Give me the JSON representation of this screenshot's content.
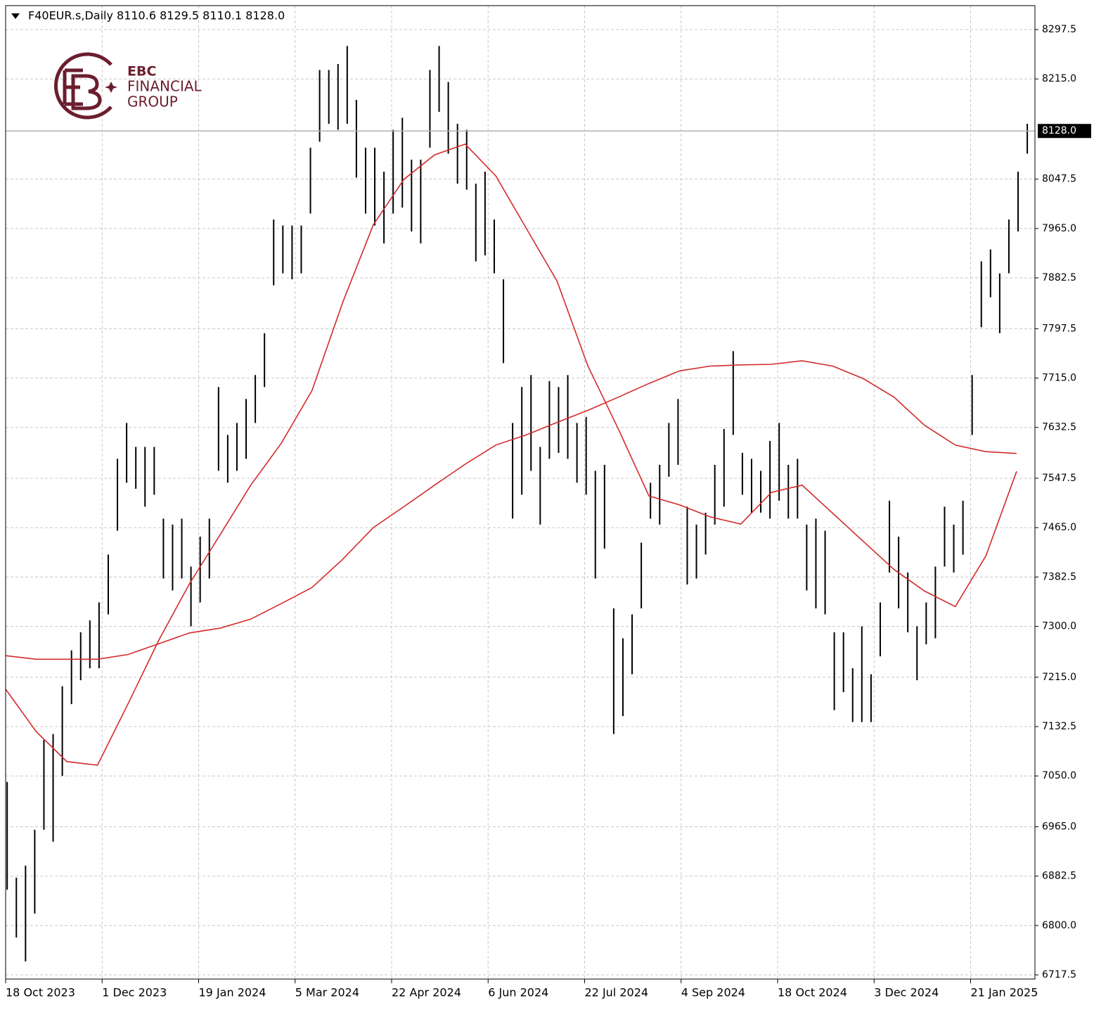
{
  "chart_data": {
    "type": "ohlc",
    "title": "F40EUR.s,Daily  8110.6 8129.5 8110.1 8128.0",
    "logo": [
      "EBC",
      "FINANCIAL",
      "GROUP"
    ],
    "color": "#000000",
    "grid": true,
    "xlim": [
      0,
      336
    ],
    "ylim": [
      6710.5,
      8337.5
    ],
    "yticks": [
      6717.5,
      {
        "value": 6800,
        "label": "6800.0"
      },
      6882.5,
      {
        "value": 6965,
        "label": "6965.0"
      },
      {
        "value": 7050,
        "label": "7050.0"
      },
      7132.5,
      {
        "value": 7215,
        "label": "7215.0"
      },
      {
        "value": 7300,
        "label": "7300.0"
      },
      7382.5,
      {
        "value": 7465,
        "label": "7465.0"
      },
      7547.5,
      7632.5,
      {
        "value": 7715,
        "label": "7715.0"
      },
      7797.5,
      7882.5,
      {
        "value": 7965,
        "label": "7965.0"
      },
      8047.5,
      {
        "value": 8215,
        "label": "8215.0"
      },
      8297.5
    ],
    "xticks": [
      {
        "value": 0,
        "label": "18 Oct 2023"
      },
      {
        "value": 31.5,
        "label": "1 Dec 2023"
      },
      {
        "value": 63,
        "label": "19 Jan 2024"
      },
      {
        "value": 94.5,
        "label": "5 Mar 2024"
      },
      {
        "value": 126,
        "label": "22 Apr 2024"
      },
      {
        "value": 157.5,
        "label": "6 Jun 2024"
      },
      {
        "value": 189,
        "label": "22 Jul 2024"
      },
      {
        "value": 220.5,
        "label": "4 Sep 2024"
      },
      {
        "value": 252,
        "label": "18 Oct 2024"
      },
      {
        "value": 283.5,
        "label": "3 Dec 2024"
      },
      {
        "value": 315,
        "label": "21 Jan 2025"
      }
    ],
    "current_price": {
      "value": 8128,
      "label": "8128.0"
    },
    "bars": {
      "x": [
        0.5,
        3.5,
        6.5,
        9.5,
        12.5,
        15.5,
        18.5,
        21.5,
        24.5,
        27.5,
        30.5,
        33.5,
        36.5,
        39.5,
        42.5,
        45.5,
        48.5,
        51.5,
        54.5,
        57.5,
        60.5,
        63.5,
        66.5,
        69.5,
        72.5,
        75.5,
        78.5,
        81.5,
        84.5,
        87.5,
        90.5,
        93.5,
        96.5,
        99.5,
        102.5,
        105.5,
        108.5,
        111.5,
        114.5,
        117.5,
        120.5,
        123.5,
        126.5,
        129.5,
        132.5,
        135.5,
        138.5,
        141.5,
        144.5,
        147.5,
        150.5,
        153.5,
        156.5,
        159.5,
        162.5,
        165.5,
        168.5,
        171.5,
        174.5,
        177.5,
        180.5,
        183.5,
        186.5,
        189.5,
        192.5,
        195.5,
        198.5,
        201.5,
        204.5,
        207.5,
        210.5,
        213.5,
        216.5,
        219.5,
        222.5,
        225.5,
        228.5,
        231.5,
        234.5,
        237.5,
        240.5,
        243.5,
        246.5,
        249.5,
        252.5,
        255.5,
        258.5,
        261.5,
        264.5,
        267.5,
        270.5,
        273.5,
        276.5,
        279.5,
        282.5,
        285.5,
        288.5,
        291.5,
        294.5,
        297.5,
        300.5,
        303.5,
        306.5,
        309.5,
        312.5,
        315.5,
        318.5,
        321.5,
        324.5,
        327.5,
        330.5,
        333.5
      ],
      "high": [
        7040,
        6880,
        6900,
        6960,
        7110,
        7120,
        7200,
        7260,
        7290,
        7310,
        7340,
        7420,
        7580,
        7640,
        7600,
        7600,
        7600,
        7480,
        7470,
        7480,
        7400,
        7450,
        7480,
        7700,
        7620,
        7640,
        7680,
        7720,
        7790,
        7980,
        7970,
        7970,
        7970,
        8100,
        8230,
        8230,
        8240,
        8270,
        8180,
        8100,
        8100,
        8060,
        8130,
        8150,
        8080,
        8080,
        8230,
        8270,
        8210,
        8140,
        8130,
        8040,
        8060,
        7980,
        7880,
        7640,
        7700,
        7720,
        7600,
        7710,
        7700,
        7720,
        7640,
        7650,
        7560,
        7570,
        7330,
        7280,
        7320,
        7440,
        7540,
        7570,
        7640,
        7680,
        7500,
        7470,
        7490,
        7570,
        7630,
        7760,
        7590,
        7580,
        7560,
        7610,
        7640,
        7570,
        7580,
        7470,
        7480,
        7460,
        7290,
        7290,
        7230,
        7300,
        7220,
        7340,
        7510,
        7450,
        7390,
        7300,
        7340,
        7400,
        7500,
        7470,
        7510,
        7720,
        7910,
        7930,
        7890,
        7980,
        8060,
        8140
      ],
      "low": [
        6860,
        6780,
        6740,
        6820,
        6960,
        6940,
        7050,
        7170,
        7210,
        7230,
        7230,
        7320,
        7460,
        7540,
        7530,
        7500,
        7520,
        7380,
        7360,
        7380,
        7300,
        7340,
        7380,
        7560,
        7540,
        7560,
        7580,
        7640,
        7700,
        7870,
        7890,
        7880,
        7890,
        7990,
        8110,
        8140,
        8130,
        8140,
        8050,
        7990,
        7970,
        7940,
        7990,
        8000,
        7960,
        7940,
        8100,
        8160,
        8090,
        8040,
        8030,
        7910,
        7920,
        7890,
        7740,
        7480,
        7520,
        7560,
        7470,
        7580,
        7590,
        7580,
        7540,
        7520,
        7380,
        7430,
        7120,
        7150,
        7220,
        7330,
        7480,
        7470,
        7550,
        7570,
        7370,
        7380,
        7420,
        7470,
        7500,
        7620,
        7520,
        7490,
        7490,
        7480,
        7510,
        7480,
        7480,
        7360,
        7330,
        7320,
        7160,
        7190,
        7140,
        7140,
        7140,
        7250,
        7390,
        7330,
        7290,
        7210,
        7270,
        7280,
        7400,
        7390,
        7420,
        7620,
        7800,
        7850,
        7790,
        7890,
        7960,
        8090
      ]
    },
    "lines": [
      {
        "color": "#d42a2a",
        "x": [
          0,
          10,
          20,
          30,
          40,
          50,
          60,
          70,
          80,
          90,
          100,
          110,
          120,
          130,
          140,
          150,
          160,
          170,
          180,
          190,
          200,
          210,
          220,
          230,
          240,
          250,
          260,
          270,
          280,
          290,
          300,
          310,
          320,
          330
        ],
        "values": [
          7195,
          7124,
          7074,
          7068,
          7171,
          7277,
          7371,
          7453,
          7536,
          7606,
          7694,
          7841,
          7971,
          8047,
          8088,
          8106,
          8053,
          7965,
          7877,
          7736,
          7630,
          7518,
          7503,
          7483,
          7471,
          7524,
          7536,
          7489,
          7442,
          7395,
          7359,
          7333,
          7418,
          7559
        ]
      },
      {
        "color": "#d42a2a",
        "x": [
          0,
          10,
          20,
          30,
          40,
          50,
          60,
          70,
          80,
          90,
          100,
          110,
          120,
          130,
          140,
          150,
          160,
          170,
          180,
          190,
          200,
          210,
          220,
          230,
          240,
          250,
          260,
          270,
          280,
          290,
          300,
          310,
          320,
          330
        ],
        "values": [
          7251,
          7245,
          7245,
          7245,
          7253,
          7271,
          7289,
          7297,
          7312,
          7338,
          7365,
          7412,
          7465,
          7500,
          7536,
          7571,
          7603,
          7620,
          7641,
          7661,
          7683,
          7706,
          7727,
          7735,
          7737,
          7738,
          7744,
          7735,
          7714,
          7683,
          7636,
          7603,
          7592,
          7589
        ]
      }
    ]
  }
}
